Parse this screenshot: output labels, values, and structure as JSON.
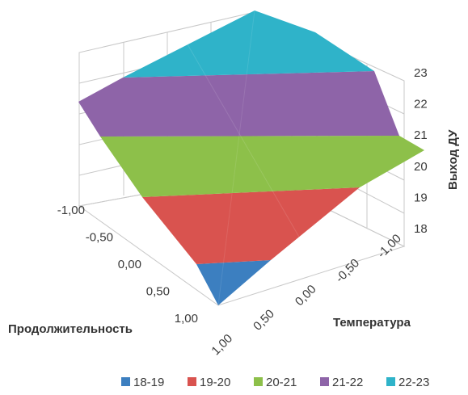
{
  "chart_data": {
    "type": "surface",
    "title": "",
    "xlabel": "Продолжительность",
    "ylabel": "Температура",
    "zlabel": "Выход ДУ",
    "x_ticks": [
      "-1,00",
      "-0,50",
      "0,00",
      "0,50",
      "1,00"
    ],
    "y_ticks": [
      "1,00",
      "0,50",
      "0,00",
      "-0,50",
      "-1,00"
    ],
    "z_ticks": [
      "18",
      "19",
      "20",
      "21",
      "22",
      "23"
    ],
    "zlim": [
      18,
      23
    ],
    "x": [
      -1,
      -0.5,
      0,
      0.5,
      1
    ],
    "y": [
      -1,
      -0.5,
      0,
      0.5,
      1
    ],
    "z": [
      [
        21.5,
        22.0,
        22.4,
        22.7,
        23.0
      ],
      [
        20.8,
        21.3,
        21.7,
        22.1,
        22.4
      ],
      [
        20.0,
        20.5,
        21.0,
        21.4,
        21.8
      ],
      [
        19.2,
        19.7,
        20.2,
        20.7,
        21.1
      ],
      [
        18.4,
        18.9,
        19.4,
        19.9,
        20.4
      ]
    ],
    "legend_position": "bottom",
    "bands": [
      {
        "label": "18-19",
        "color": "#3c7fc0"
      },
      {
        "label": "19-20",
        "color": "#d9534f"
      },
      {
        "label": "20-21",
        "color": "#8dc04a"
      },
      {
        "label": "21-22",
        "color": "#8e64a8"
      },
      {
        "label": "22-23",
        "color": "#2fb3c9"
      }
    ]
  }
}
